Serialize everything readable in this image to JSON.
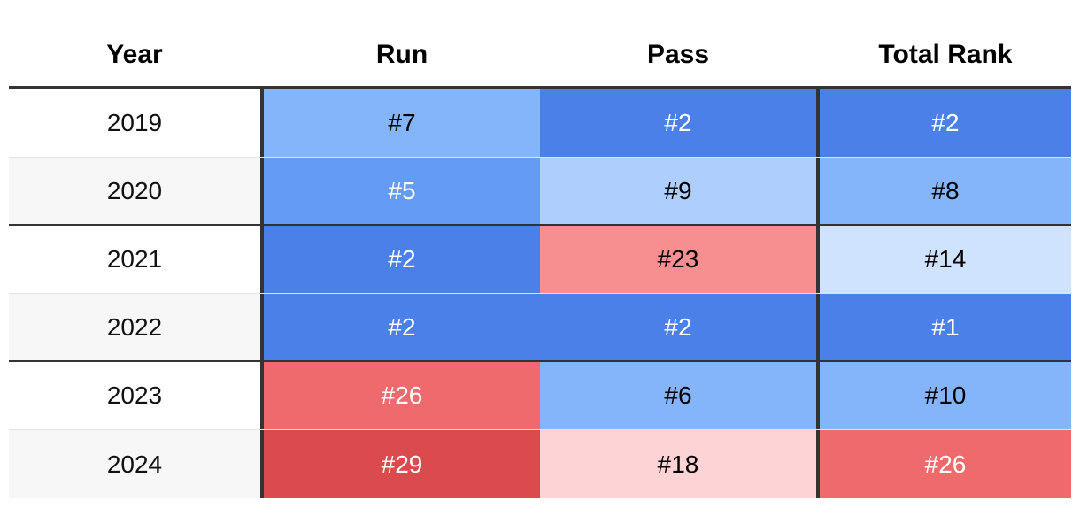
{
  "chart_data": {
    "type": "table",
    "columns": [
      "Year",
      "Run",
      "Pass",
      "Total Rank"
    ],
    "rows": [
      {
        "year": "2019",
        "run": "#7",
        "pass": "#2",
        "total": "#2"
      },
      {
        "year": "2020",
        "run": "#5",
        "pass": "#9",
        "total": "#8"
      },
      {
        "year": "2021",
        "run": "#2",
        "pass": "#23",
        "total": "#14"
      },
      {
        "year": "2022",
        "run": "#2",
        "pass": "#2",
        "total": "#1"
      },
      {
        "year": "2023",
        "run": "#26",
        "pass": "#6",
        "total": "#10"
      },
      {
        "year": "2024",
        "run": "#29",
        "pass": "#18",
        "total": "#26"
      }
    ],
    "cell_colors": {
      "run": [
        "#84b5fa",
        "#649cf5",
        "#4b80e8",
        "#4b80e8",
        "#ef6a6c",
        "#db4b4e"
      ],
      "pass": [
        "#4b80e8",
        "#aecffd",
        "#f78e8f",
        "#4b80e8",
        "#84b5fa",
        "#fdd3d5"
      ],
      "total": [
        "#4b80e8",
        "#84b5fa",
        "#d0e3fe",
        "#4b80e8",
        "#84b5fa",
        "#ef6a6c"
      ]
    },
    "cell_text_colors": {
      "run": [
        "#000000",
        "#ffffff",
        "#ffffff",
        "#ffffff",
        "#ffffff",
        "#ffffff"
      ],
      "pass": [
        "#ffffff",
        "#000000",
        "#000000",
        "#ffffff",
        "#000000",
        "#000000"
      ],
      "total": [
        "#ffffff",
        "#000000",
        "#000000",
        "#ffffff",
        "#000000",
        "#ffffff"
      ]
    },
    "group_separators_after_rows": [
      1,
      3
    ]
  }
}
